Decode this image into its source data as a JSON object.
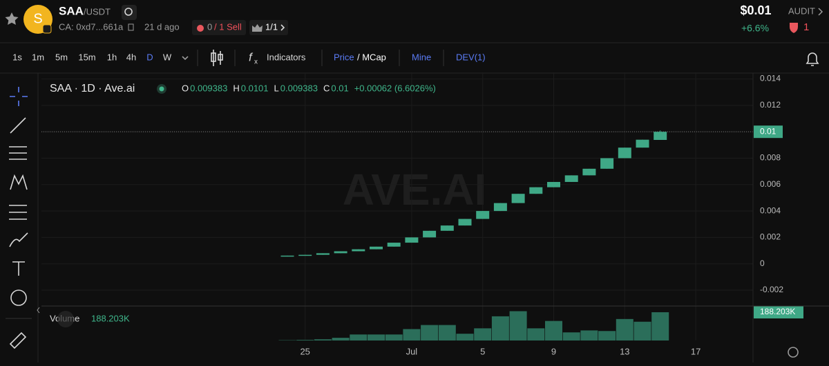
{
  "header": {
    "symbol": "SAA",
    "pair": "/USDT",
    "avatar_letter": "S",
    "contract": "CA: 0xd7...661a",
    "age": "21 d ago",
    "sells_zero": "0",
    "sells": "/ 1 Sell",
    "holders": "1/1",
    "price": "$0.01",
    "change": "+6.6%",
    "audit": "AUDIT",
    "risk_count": "1"
  },
  "toolbar": {
    "intervals": [
      "1s",
      "1m",
      "5m",
      "15m",
      "1h",
      "4h",
      "D",
      "W"
    ],
    "active_interval": "D",
    "indicators": "Indicators",
    "price": "Price",
    "mcap": "/ MCap",
    "mine": "Mine",
    "dev": "DEV(1)"
  },
  "chart_data": {
    "type": "candlestick",
    "title": "SAA · 1D · Ave.ai",
    "watermark": "AVE.AI",
    "ohlc_labels": [
      "O",
      "H",
      "L",
      "C"
    ],
    "last_change": "+0.00062 (6.6026%)",
    "x": [
      "06-24",
      "06-25",
      "06-26",
      "06-27",
      "06-28",
      "06-29",
      "06-30",
      "07-01",
      "07-02",
      "07-03",
      "07-04",
      "07-05",
      "07-06",
      "07-07",
      "07-08",
      "07-09",
      "07-10",
      "07-11",
      "07-12",
      "07-13",
      "07-14",
      "07-15"
    ],
    "open": [
      0.00055,
      0.00062,
      0.00068,
      0.0008,
      0.00095,
      0.0011,
      0.0013,
      0.0016,
      0.002,
      0.0025,
      0.0029,
      0.0034,
      0.004,
      0.0046,
      0.0053,
      0.0058,
      0.0062,
      0.0067,
      0.0072,
      0.008,
      0.0088,
      0.009383
    ],
    "high": [
      0.00062,
      0.00068,
      0.0008,
      0.00095,
      0.0011,
      0.0013,
      0.0016,
      0.002,
      0.0025,
      0.0029,
      0.0034,
      0.004,
      0.0046,
      0.0053,
      0.0058,
      0.0062,
      0.0067,
      0.0072,
      0.008,
      0.0088,
      0.0094,
      0.0101
    ],
    "low": [
      0.00055,
      0.00062,
      0.00068,
      0.0008,
      0.00095,
      0.0011,
      0.0013,
      0.0016,
      0.002,
      0.0025,
      0.0029,
      0.0034,
      0.004,
      0.0046,
      0.0053,
      0.0058,
      0.0062,
      0.0067,
      0.0072,
      0.008,
      0.0088,
      0.009383
    ],
    "close": [
      0.00062,
      0.00068,
      0.0008,
      0.00095,
      0.0011,
      0.0013,
      0.0016,
      0.002,
      0.0025,
      0.0029,
      0.0034,
      0.004,
      0.0046,
      0.0053,
      0.0058,
      0.0062,
      0.0067,
      0.0072,
      0.008,
      0.0088,
      0.0094,
      0.01
    ],
    "color": "#3fa886",
    "volume": {
      "name": "Volume",
      "color": "#2b6e5a",
      "values": [
        2000,
        4000,
        8000,
        18000,
        40000,
        40000,
        40000,
        76000,
        103000,
        103000,
        45000,
        81000,
        161000,
        195000,
        81000,
        130000,
        54000,
        67000,
        63000,
        143000,
        125000,
        188203
      ],
      "value_labels": [
        null,
        null,
        null,
        null,
        null,
        null,
        null,
        null,
        null,
        null,
        null,
        null,
        null,
        null,
        null,
        null,
        null,
        null,
        null,
        null,
        null,
        "188.203K"
      ]
    },
    "ylim": [
      -0.0032,
      0.0145
    ],
    "yticks": [
      -0.002,
      0,
      0.002,
      0.004,
      0.006,
      0.008,
      0.01,
      0.012,
      0.014
    ],
    "xticks": [
      {
        "value": "06-25",
        "label": "25"
      },
      {
        "value": "07-01",
        "label": "Jul"
      },
      {
        "value": "07-05",
        "label": "5"
      },
      {
        "value": "07-09",
        "label": "9"
      },
      {
        "value": "07-13",
        "label": "13"
      },
      {
        "value": "07-17",
        "label": "17"
      }
    ],
    "grid": true
  }
}
